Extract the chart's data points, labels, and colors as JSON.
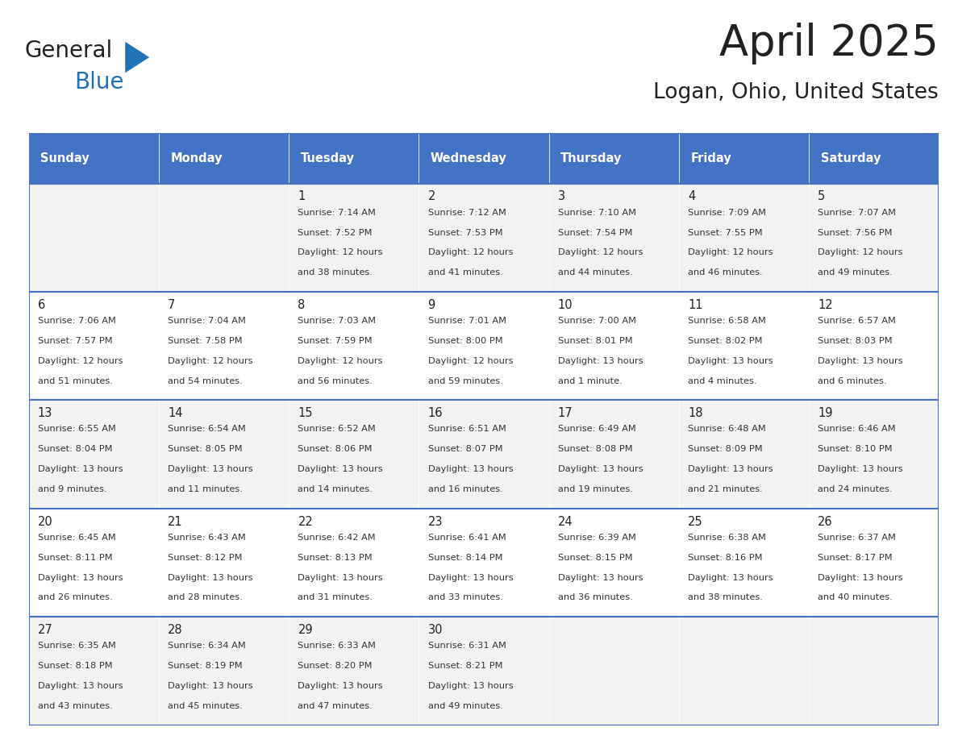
{
  "title": "April 2025",
  "subtitle": "Logan, Ohio, United States",
  "header_bg_color": "#4472C4",
  "header_text_color": "#FFFFFF",
  "cell_bg_even": "#F2F2F2",
  "cell_bg_odd": "#FFFFFF",
  "border_color": "#4472C4",
  "days_of_week": [
    "Sunday",
    "Monday",
    "Tuesday",
    "Wednesday",
    "Thursday",
    "Friday",
    "Saturday"
  ],
  "weeks": [
    [
      {
        "day": null,
        "sunrise": null,
        "sunset": null,
        "daylight_line1": null,
        "daylight_line2": null
      },
      {
        "day": null,
        "sunrise": null,
        "sunset": null,
        "daylight_line1": null,
        "daylight_line2": null
      },
      {
        "day": "1",
        "sunrise": "7:14 AM",
        "sunset": "7:52 PM",
        "daylight_line1": "Daylight: 12 hours",
        "daylight_line2": "and 38 minutes."
      },
      {
        "day": "2",
        "sunrise": "7:12 AM",
        "sunset": "7:53 PM",
        "daylight_line1": "Daylight: 12 hours",
        "daylight_line2": "and 41 minutes."
      },
      {
        "day": "3",
        "sunrise": "7:10 AM",
        "sunset": "7:54 PM",
        "daylight_line1": "Daylight: 12 hours",
        "daylight_line2": "and 44 minutes."
      },
      {
        "day": "4",
        "sunrise": "7:09 AM",
        "sunset": "7:55 PM",
        "daylight_line1": "Daylight: 12 hours",
        "daylight_line2": "and 46 minutes."
      },
      {
        "day": "5",
        "sunrise": "7:07 AM",
        "sunset": "7:56 PM",
        "daylight_line1": "Daylight: 12 hours",
        "daylight_line2": "and 49 minutes."
      }
    ],
    [
      {
        "day": "6",
        "sunrise": "7:06 AM",
        "sunset": "7:57 PM",
        "daylight_line1": "Daylight: 12 hours",
        "daylight_line2": "and 51 minutes."
      },
      {
        "day": "7",
        "sunrise": "7:04 AM",
        "sunset": "7:58 PM",
        "daylight_line1": "Daylight: 12 hours",
        "daylight_line2": "and 54 minutes."
      },
      {
        "day": "8",
        "sunrise": "7:03 AM",
        "sunset": "7:59 PM",
        "daylight_line1": "Daylight: 12 hours",
        "daylight_line2": "and 56 minutes."
      },
      {
        "day": "9",
        "sunrise": "7:01 AM",
        "sunset": "8:00 PM",
        "daylight_line1": "Daylight: 12 hours",
        "daylight_line2": "and 59 minutes."
      },
      {
        "day": "10",
        "sunrise": "7:00 AM",
        "sunset": "8:01 PM",
        "daylight_line1": "Daylight: 13 hours",
        "daylight_line2": "and 1 minute."
      },
      {
        "day": "11",
        "sunrise": "6:58 AM",
        "sunset": "8:02 PM",
        "daylight_line1": "Daylight: 13 hours",
        "daylight_line2": "and 4 minutes."
      },
      {
        "day": "12",
        "sunrise": "6:57 AM",
        "sunset": "8:03 PM",
        "daylight_line1": "Daylight: 13 hours",
        "daylight_line2": "and 6 minutes."
      }
    ],
    [
      {
        "day": "13",
        "sunrise": "6:55 AM",
        "sunset": "8:04 PM",
        "daylight_line1": "Daylight: 13 hours",
        "daylight_line2": "and 9 minutes."
      },
      {
        "day": "14",
        "sunrise": "6:54 AM",
        "sunset": "8:05 PM",
        "daylight_line1": "Daylight: 13 hours",
        "daylight_line2": "and 11 minutes."
      },
      {
        "day": "15",
        "sunrise": "6:52 AM",
        "sunset": "8:06 PM",
        "daylight_line1": "Daylight: 13 hours",
        "daylight_line2": "and 14 minutes."
      },
      {
        "day": "16",
        "sunrise": "6:51 AM",
        "sunset": "8:07 PM",
        "daylight_line1": "Daylight: 13 hours",
        "daylight_line2": "and 16 minutes."
      },
      {
        "day": "17",
        "sunrise": "6:49 AM",
        "sunset": "8:08 PM",
        "daylight_line1": "Daylight: 13 hours",
        "daylight_line2": "and 19 minutes."
      },
      {
        "day": "18",
        "sunrise": "6:48 AM",
        "sunset": "8:09 PM",
        "daylight_line1": "Daylight: 13 hours",
        "daylight_line2": "and 21 minutes."
      },
      {
        "day": "19",
        "sunrise": "6:46 AM",
        "sunset": "8:10 PM",
        "daylight_line1": "Daylight: 13 hours",
        "daylight_line2": "and 24 minutes."
      }
    ],
    [
      {
        "day": "20",
        "sunrise": "6:45 AM",
        "sunset": "8:11 PM",
        "daylight_line1": "Daylight: 13 hours",
        "daylight_line2": "and 26 minutes."
      },
      {
        "day": "21",
        "sunrise": "6:43 AM",
        "sunset": "8:12 PM",
        "daylight_line1": "Daylight: 13 hours",
        "daylight_line2": "and 28 minutes."
      },
      {
        "day": "22",
        "sunrise": "6:42 AM",
        "sunset": "8:13 PM",
        "daylight_line1": "Daylight: 13 hours",
        "daylight_line2": "and 31 minutes."
      },
      {
        "day": "23",
        "sunrise": "6:41 AM",
        "sunset": "8:14 PM",
        "daylight_line1": "Daylight: 13 hours",
        "daylight_line2": "and 33 minutes."
      },
      {
        "day": "24",
        "sunrise": "6:39 AM",
        "sunset": "8:15 PM",
        "daylight_line1": "Daylight: 13 hours",
        "daylight_line2": "and 36 minutes."
      },
      {
        "day": "25",
        "sunrise": "6:38 AM",
        "sunset": "8:16 PM",
        "daylight_line1": "Daylight: 13 hours",
        "daylight_line2": "and 38 minutes."
      },
      {
        "day": "26",
        "sunrise": "6:37 AM",
        "sunset": "8:17 PM",
        "daylight_line1": "Daylight: 13 hours",
        "daylight_line2": "and 40 minutes."
      }
    ],
    [
      {
        "day": "27",
        "sunrise": "6:35 AM",
        "sunset": "8:18 PM",
        "daylight_line1": "Daylight: 13 hours",
        "daylight_line2": "and 43 minutes."
      },
      {
        "day": "28",
        "sunrise": "6:34 AM",
        "sunset": "8:19 PM",
        "daylight_line1": "Daylight: 13 hours",
        "daylight_line2": "and 45 minutes."
      },
      {
        "day": "29",
        "sunrise": "6:33 AM",
        "sunset": "8:20 PM",
        "daylight_line1": "Daylight: 13 hours",
        "daylight_line2": "and 47 minutes."
      },
      {
        "day": "30",
        "sunrise": "6:31 AM",
        "sunset": "8:21 PM",
        "daylight_line1": "Daylight: 13 hours",
        "daylight_line2": "and 49 minutes."
      },
      {
        "day": null,
        "sunrise": null,
        "sunset": null,
        "daylight_line1": null,
        "daylight_line2": null
      },
      {
        "day": null,
        "sunrise": null,
        "sunset": null,
        "daylight_line1": null,
        "daylight_line2": null
      },
      {
        "day": null,
        "sunrise": null,
        "sunset": null,
        "daylight_line1": null,
        "daylight_line2": null
      }
    ]
  ],
  "logo_text_general": "General",
  "logo_text_blue": "Blue",
  "general_color": "#222222",
  "blue_color": "#2171B5",
  "triangle_color": "#2171B5",
  "text_color": "#333333",
  "day_num_color": "#222222",
  "figsize": [
    11.88,
    9.18
  ],
  "dpi": 100
}
